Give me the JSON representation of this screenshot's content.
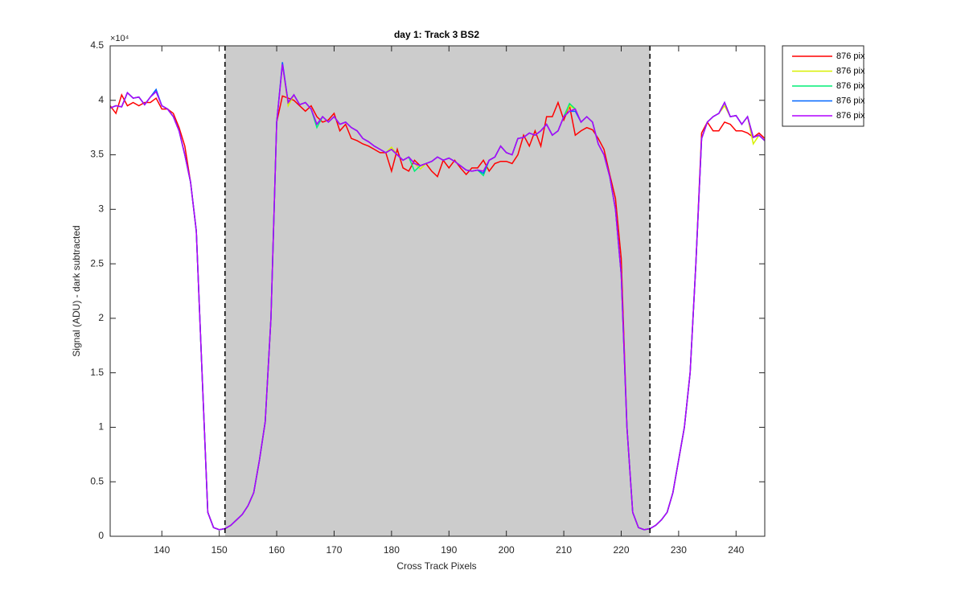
{
  "chart_data": {
    "type": "line",
    "title": "day 1: Track 3  BS2",
    "xlabel": "Cross Track Pixels",
    "ylabel": "Signal (ADU) - dark subtracted",
    "y_multiplier": "×10⁴",
    "xlim": [
      131,
      245
    ],
    "xticks": [
      140,
      150,
      160,
      170,
      180,
      190,
      200,
      210,
      220,
      230,
      240
    ],
    "ylim": [
      0,
      4.5
    ],
    "yticks": [
      0,
      0.5,
      1,
      1.5,
      2,
      2.5,
      3,
      3.5,
      4,
      4.5
    ],
    "shaded_region": [
      151,
      225
    ],
    "shade_color": "#cccccc",
    "legend": "outside-top-right",
    "x": [
      131,
      132,
      133,
      134,
      135,
      136,
      137,
      138,
      139,
      140,
      141,
      142,
      143,
      144,
      145,
      146,
      147,
      148,
      149,
      150,
      151,
      152,
      153,
      154,
      155,
      156,
      157,
      158,
      159,
      160,
      161,
      162,
      163,
      164,
      165,
      166,
      167,
      168,
      169,
      170,
      171,
      172,
      173,
      174,
      175,
      176,
      177,
      178,
      179,
      180,
      181,
      182,
      183,
      184,
      185,
      186,
      187,
      188,
      189,
      190,
      191,
      192,
      193,
      194,
      195,
      196,
      197,
      198,
      199,
      200,
      201,
      202,
      203,
      204,
      205,
      206,
      207,
      208,
      209,
      210,
      211,
      212,
      213,
      214,
      215,
      216,
      217,
      218,
      219,
      220,
      221,
      222,
      223,
      224,
      225,
      226,
      227,
      228,
      229,
      230,
      231,
      232,
      233,
      234,
      235,
      236,
      237,
      238,
      239,
      240,
      241,
      242,
      243,
      244,
      245
    ],
    "series": [
      {
        "name": "876 pix",
        "color": "#ff0000",
        "values": [
          3.95,
          3.88,
          4.05,
          3.95,
          3.98,
          3.95,
          3.98,
          3.98,
          4.02,
          3.92,
          3.92,
          3.88,
          3.75,
          3.58,
          3.25,
          2.8,
          1.5,
          0.22,
          0.08,
          0.06,
          0.07,
          0.1,
          0.15,
          0.2,
          0.28,
          0.4,
          0.7,
          1.05,
          2.0,
          3.8,
          4.04,
          4.02,
          4.0,
          3.95,
          3.9,
          3.95,
          3.85,
          3.8,
          3.82,
          3.88,
          3.72,
          3.78,
          3.65,
          3.63,
          3.6,
          3.58,
          3.55,
          3.52,
          3.52,
          3.35,
          3.55,
          3.38,
          3.35,
          3.45,
          3.4,
          3.42,
          3.35,
          3.3,
          3.45,
          3.38,
          3.45,
          3.38,
          3.32,
          3.38,
          3.38,
          3.45,
          3.35,
          3.42,
          3.44,
          3.44,
          3.42,
          3.5,
          3.68,
          3.58,
          3.72,
          3.58,
          3.85,
          3.85,
          3.98,
          3.82,
          3.95,
          3.68,
          3.72,
          3.75,
          3.73,
          3.65,
          3.55,
          3.32,
          3.1,
          2.55,
          1.0,
          0.22,
          0.08,
          0.06,
          0.07,
          0.1,
          0.15,
          0.22,
          0.4,
          0.7,
          1.0,
          1.5,
          2.5,
          3.7,
          3.8,
          3.72,
          3.72,
          3.8,
          3.78,
          3.72,
          3.72,
          3.7,
          3.66,
          3.7,
          3.65
        ]
      },
      {
        "name": "876 pix",
        "color": "#d8f000",
        "values": [
          3.93,
          3.95,
          3.94,
          4.07,
          4.02,
          4.03,
          3.96,
          4.03,
          4.08,
          3.95,
          3.92,
          3.85,
          3.72,
          3.5,
          3.25,
          2.8,
          1.5,
          0.22,
          0.08,
          0.06,
          0.07,
          0.1,
          0.15,
          0.2,
          0.28,
          0.4,
          0.7,
          1.05,
          2.0,
          3.8,
          4.33,
          3.95,
          4.05,
          3.96,
          3.98,
          3.92,
          3.78,
          3.85,
          3.8,
          3.85,
          3.78,
          3.8,
          3.75,
          3.72,
          3.65,
          3.62,
          3.58,
          3.55,
          3.52,
          3.57,
          3.5,
          3.45,
          3.48,
          3.42,
          3.37,
          3.42,
          3.44,
          3.48,
          3.45,
          3.47,
          3.44,
          3.4,
          3.36,
          3.35,
          3.36,
          3.35,
          3.45,
          3.48,
          3.58,
          3.52,
          3.5,
          3.65,
          3.66,
          3.7,
          3.68,
          3.72,
          3.78,
          3.68,
          3.72,
          3.85,
          3.95,
          3.92,
          3.8,
          3.85,
          3.8,
          3.6,
          3.5,
          3.3,
          3.0,
          2.4,
          1.0,
          0.22,
          0.08,
          0.06,
          0.07,
          0.1,
          0.15,
          0.22,
          0.4,
          0.7,
          1.0,
          1.5,
          2.5,
          3.65,
          3.8,
          3.85,
          3.88,
          3.95,
          3.85,
          3.86,
          3.78,
          3.85,
          3.6,
          3.68,
          3.63
        ]
      },
      {
        "name": "876 pix",
        "color": "#00ee77",
        "values": [
          3.93,
          3.95,
          3.94,
          4.07,
          4.02,
          4.03,
          3.96,
          4.03,
          4.08,
          3.95,
          3.92,
          3.85,
          3.72,
          3.5,
          3.25,
          2.8,
          1.5,
          0.22,
          0.08,
          0.06,
          0.07,
          0.1,
          0.15,
          0.2,
          0.28,
          0.4,
          0.7,
          1.05,
          2.0,
          3.8,
          4.33,
          3.98,
          4.05,
          3.96,
          3.98,
          3.92,
          3.75,
          3.85,
          3.8,
          3.85,
          3.78,
          3.8,
          3.75,
          3.72,
          3.65,
          3.62,
          3.58,
          3.55,
          3.52,
          3.55,
          3.5,
          3.45,
          3.48,
          3.35,
          3.4,
          3.42,
          3.44,
          3.48,
          3.45,
          3.47,
          3.44,
          3.4,
          3.36,
          3.35,
          3.36,
          3.31,
          3.45,
          3.48,
          3.58,
          3.52,
          3.5,
          3.65,
          3.66,
          3.7,
          3.68,
          3.72,
          3.78,
          3.68,
          3.72,
          3.85,
          3.97,
          3.92,
          3.8,
          3.85,
          3.8,
          3.6,
          3.5,
          3.3,
          3.0,
          2.4,
          1.0,
          0.22,
          0.08,
          0.06,
          0.07,
          0.1,
          0.15,
          0.22,
          0.4,
          0.7,
          1.0,
          1.5,
          2.5,
          3.65,
          3.8,
          3.85,
          3.88,
          3.98,
          3.85,
          3.86,
          3.78,
          3.85,
          3.66,
          3.68,
          3.63
        ]
      },
      {
        "name": "876 pix",
        "color": "#0066ff",
        "values": [
          3.93,
          3.95,
          3.94,
          4.07,
          4.02,
          4.03,
          3.96,
          4.03,
          4.1,
          3.95,
          3.92,
          3.85,
          3.72,
          3.5,
          3.25,
          2.8,
          1.5,
          0.22,
          0.08,
          0.06,
          0.07,
          0.1,
          0.15,
          0.2,
          0.28,
          0.4,
          0.7,
          1.05,
          2.0,
          3.8,
          4.35,
          3.98,
          4.05,
          3.96,
          3.98,
          3.92,
          3.78,
          3.85,
          3.8,
          3.85,
          3.78,
          3.8,
          3.75,
          3.72,
          3.65,
          3.62,
          3.58,
          3.55,
          3.52,
          3.55,
          3.5,
          3.45,
          3.48,
          3.42,
          3.4,
          3.42,
          3.44,
          3.48,
          3.45,
          3.47,
          3.44,
          3.4,
          3.36,
          3.35,
          3.36,
          3.33,
          3.45,
          3.48,
          3.58,
          3.52,
          3.5,
          3.65,
          3.66,
          3.7,
          3.68,
          3.72,
          3.78,
          3.68,
          3.72,
          3.85,
          3.9,
          3.9,
          3.8,
          3.85,
          3.8,
          3.6,
          3.5,
          3.3,
          3.0,
          2.4,
          1.0,
          0.22,
          0.08,
          0.06,
          0.07,
          0.1,
          0.15,
          0.22,
          0.4,
          0.7,
          1.0,
          1.5,
          2.5,
          3.65,
          3.8,
          3.85,
          3.88,
          3.98,
          3.85,
          3.86,
          3.78,
          3.85,
          3.66,
          3.68,
          3.63
        ]
      },
      {
        "name": "876 pix",
        "color": "#b000ff",
        "values": [
          3.93,
          3.95,
          3.94,
          4.07,
          4.02,
          4.03,
          3.96,
          4.03,
          4.08,
          3.95,
          3.92,
          3.85,
          3.72,
          3.5,
          3.25,
          2.8,
          1.5,
          0.22,
          0.08,
          0.06,
          0.07,
          0.1,
          0.15,
          0.2,
          0.28,
          0.4,
          0.7,
          1.05,
          2.0,
          3.8,
          4.33,
          3.98,
          4.05,
          3.96,
          3.98,
          3.92,
          3.78,
          3.85,
          3.8,
          3.85,
          3.78,
          3.8,
          3.75,
          3.72,
          3.65,
          3.62,
          3.58,
          3.55,
          3.52,
          3.55,
          3.5,
          3.45,
          3.48,
          3.42,
          3.4,
          3.42,
          3.44,
          3.48,
          3.45,
          3.47,
          3.44,
          3.4,
          3.36,
          3.35,
          3.36,
          3.35,
          3.45,
          3.48,
          3.58,
          3.52,
          3.5,
          3.65,
          3.66,
          3.7,
          3.68,
          3.72,
          3.78,
          3.68,
          3.72,
          3.85,
          3.9,
          3.92,
          3.8,
          3.85,
          3.8,
          3.6,
          3.5,
          3.3,
          3.0,
          2.4,
          1.0,
          0.22,
          0.08,
          0.06,
          0.07,
          0.1,
          0.15,
          0.22,
          0.4,
          0.7,
          1.0,
          1.5,
          2.5,
          3.65,
          3.8,
          3.85,
          3.88,
          3.98,
          3.85,
          3.86,
          3.78,
          3.85,
          3.66,
          3.68,
          3.63
        ]
      }
    ]
  }
}
